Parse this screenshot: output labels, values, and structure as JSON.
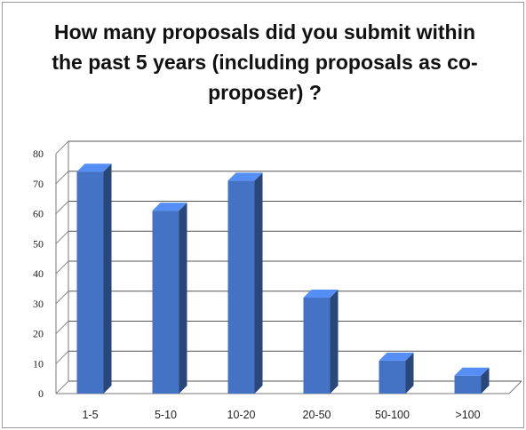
{
  "chart_data": {
    "type": "bar",
    "title": "How many proposals did you submit within the past 5 years (including proposals as co-proposer) ?",
    "categories": [
      "1-5",
      "5-10",
      "10-20",
      "20-50",
      "50-100",
      ">100"
    ],
    "values": [
      74,
      61,
      71,
      32,
      11,
      6
    ],
    "ylim": [
      0,
      80
    ],
    "yticks": [
      0,
      10,
      20,
      30,
      40,
      50,
      60,
      70,
      80
    ],
    "xlabel": "",
    "ylabel": "",
    "grid": true,
    "legend": "none",
    "style": "3d-column",
    "bar_color": "#4472c4"
  }
}
